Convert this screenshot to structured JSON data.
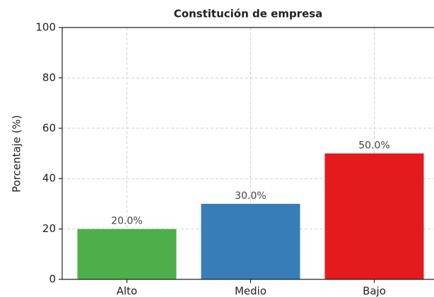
{
  "chart_data": {
    "type": "bar",
    "title": "Constitución de empresa",
    "y_label": "Porcentaje (%)",
    "categories": [
      "Alto",
      "Medio",
      "Bajo"
    ],
    "values": [
      20,
      30,
      50
    ],
    "value_labels": [
      "20.0%",
      "30.0%",
      "50.0%"
    ],
    "colors": [
      "#4daf4a",
      "#377eb8",
      "#e41a1c"
    ],
    "ylim": [
      0,
      100
    ],
    "yticks": [
      0,
      20,
      40,
      60,
      80,
      100
    ],
    "grid": true
  }
}
